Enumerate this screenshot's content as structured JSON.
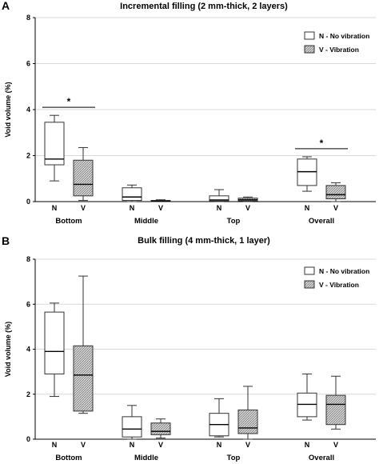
{
  "chart_data": [
    {
      "type": "boxplot",
      "panel_label": "A",
      "title": "Incremental filling (2 mm-thick, 2 layers)",
      "ylabel": "Void volume (%)",
      "ylim": [
        0,
        8
      ],
      "yticks": [
        0,
        2,
        4,
        6,
        8
      ],
      "grid": true,
      "categories": [
        "Bottom",
        "Middle",
        "Top",
        "Overall"
      ],
      "groups": [
        "N",
        "V"
      ],
      "legend": {
        "placement": "top-right",
        "entries": [
          {
            "name": "N - No vibration",
            "pattern": "plain"
          },
          {
            "name": "V - Vibration",
            "pattern": "hatched"
          }
        ]
      },
      "series": [
        {
          "name": "N - No vibration",
          "tick": "N",
          "boxes": [
            {
              "min": 0.9,
              "q1": 1.6,
              "median": 1.85,
              "q3": 3.45,
              "max": 3.75
            },
            {
              "min": 0.0,
              "q1": 0.05,
              "median": 0.2,
              "q3": 0.6,
              "max": 0.72
            },
            {
              "min": 0.0,
              "q1": 0.02,
              "median": 0.07,
              "q3": 0.25,
              "max": 0.52
            },
            {
              "min": 0.45,
              "q1": 0.7,
              "median": 1.3,
              "q3": 1.85,
              "max": 1.95
            }
          ]
        },
        {
          "name": "V - Vibration",
          "tick": "V",
          "boxes": [
            {
              "min": 0.05,
              "q1": 0.25,
              "median": 0.75,
              "q3": 1.8,
              "max": 2.35
            },
            {
              "min": 0.0,
              "q1": 0.0,
              "median": 0.02,
              "q3": 0.05,
              "max": 0.08
            },
            {
              "min": 0.0,
              "q1": 0.03,
              "median": 0.08,
              "q3": 0.15,
              "max": 0.2
            },
            {
              "min": 0.0,
              "q1": 0.12,
              "median": 0.3,
              "q3": 0.7,
              "max": 0.82
            }
          ]
        }
      ],
      "significance": [
        {
          "category": "Bottom",
          "label": "*",
          "y": 4.1
        },
        {
          "category": "Overall",
          "label": "*",
          "y": 2.3
        }
      ]
    },
    {
      "type": "boxplot",
      "panel_label": "B",
      "title": "Bulk filling (4 mm-thick, 1 layer)",
      "ylabel": "Void volume (%)",
      "ylim": [
        0,
        8
      ],
      "yticks": [
        0,
        2,
        4,
        6,
        8
      ],
      "grid": true,
      "categories": [
        "Bottom",
        "Middle",
        "Top",
        "Overall"
      ],
      "groups": [
        "N",
        "V"
      ],
      "legend": {
        "placement": "top-right",
        "entries": [
          {
            "name": "N - No vibration",
            "pattern": "plain"
          },
          {
            "name": "V - Vibration",
            "pattern": "hatched"
          }
        ]
      },
      "series": [
        {
          "name": "N - No vibration",
          "tick": "N",
          "boxes": [
            {
              "min": 1.9,
              "q1": 2.9,
              "median": 3.9,
              "q3": 5.65,
              "max": 6.05
            },
            {
              "min": 0.0,
              "q1": 0.1,
              "median": 0.45,
              "q3": 1.0,
              "max": 1.5
            },
            {
              "min": 0.1,
              "q1": 0.15,
              "median": 0.65,
              "q3": 1.15,
              "max": 1.8
            },
            {
              "min": 0.85,
              "q1": 1.0,
              "median": 1.55,
              "q3": 2.05,
              "max": 2.9
            }
          ]
        },
        {
          "name": "V - Vibration",
          "tick": "V",
          "boxes": [
            {
              "min": 1.15,
              "q1": 1.25,
              "median": 2.85,
              "q3": 4.15,
              "max": 7.25
            },
            {
              "min": 0.05,
              "q1": 0.2,
              "median": 0.35,
              "q3": 0.72,
              "max": 0.9
            },
            {
              "min": 0.0,
              "q1": 0.25,
              "median": 0.5,
              "q3": 1.3,
              "max": 2.35
            },
            {
              "min": 0.45,
              "q1": 0.65,
              "median": 1.55,
              "q3": 1.95,
              "max": 2.8
            }
          ]
        }
      ],
      "significance": []
    }
  ]
}
